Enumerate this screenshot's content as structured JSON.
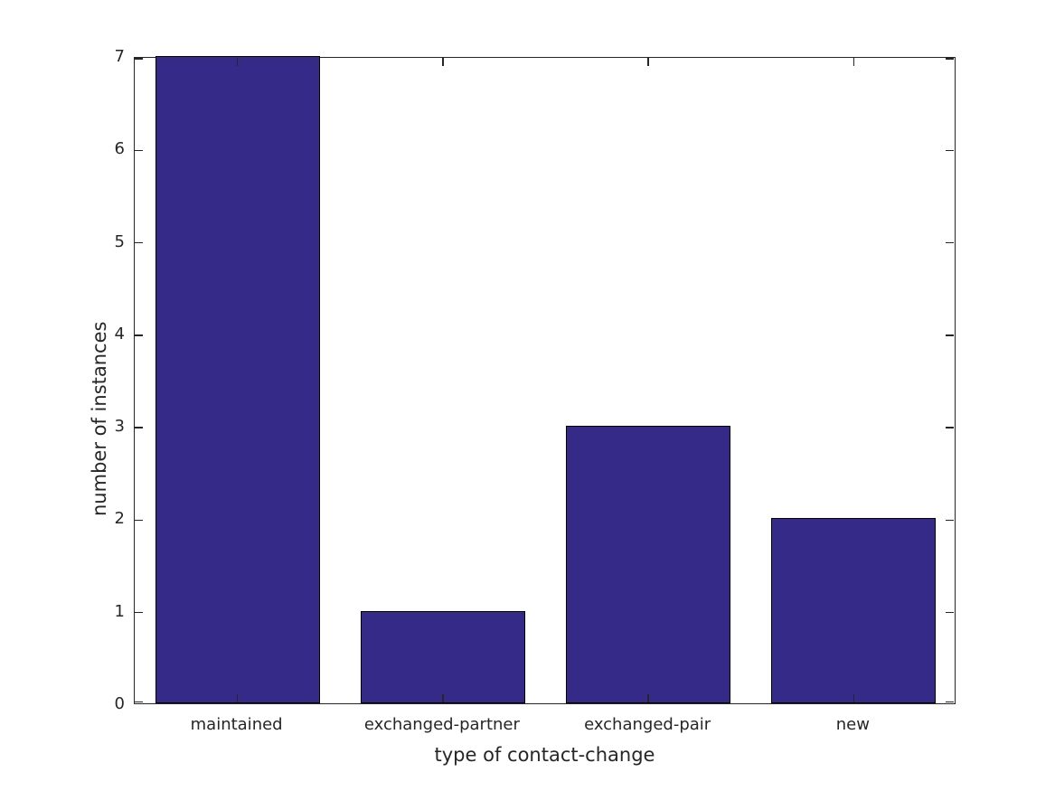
{
  "figure": {
    "background": "#ffffff"
  },
  "chart_data": {
    "type": "bar",
    "categories": [
      "maintained",
      "exchanged-partner",
      "exchanged-pair",
      "new"
    ],
    "values": [
      7,
      1,
      3,
      2
    ],
    "title": "",
    "xlabel": "type of contact-change",
    "ylabel": "number of instances",
    "ylim": [
      0,
      7
    ],
    "yticks": [
      0,
      1,
      2,
      3,
      4,
      5,
      6,
      7
    ],
    "bar_width_fraction": 0.8,
    "grid": false,
    "legend_position": "none",
    "tick_style": "inward-all-sides",
    "colors": {
      "bar_fill": "#352A87",
      "bar_edge": "#000000",
      "axis": "#262626",
      "text": "#262626",
      "background": "#ffffff"
    }
  }
}
